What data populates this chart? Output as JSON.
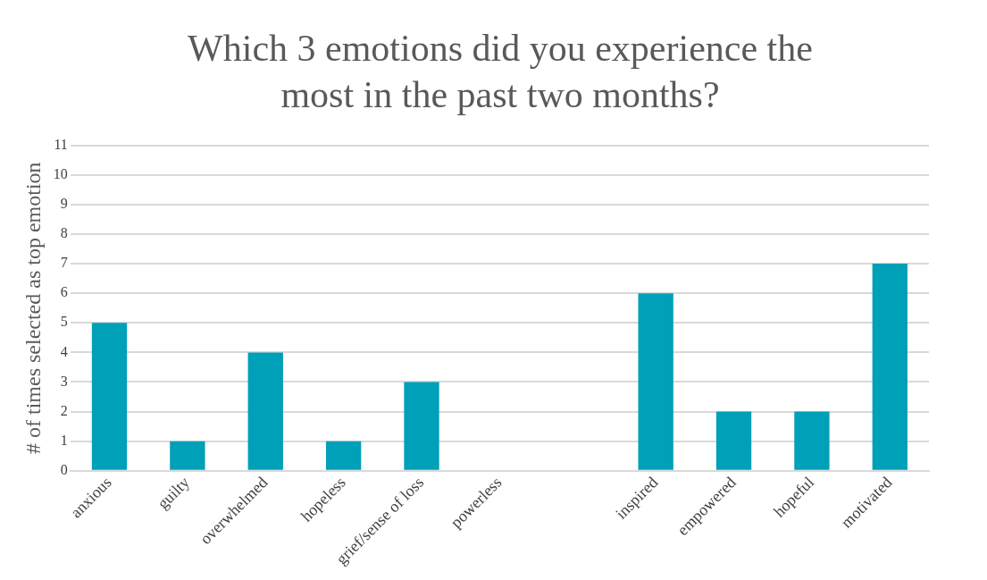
{
  "chart_data": {
    "type": "bar",
    "title": "Which 3 emotions did you experience the most in the past two months?",
    "ylabel": "# of times selected as top emotion",
    "categories": [
      "anxious",
      "guilty",
      "overwhelmed",
      "hopeless",
      "grief/sense of loss",
      "powerless",
      null,
      "inspired",
      "empowered",
      "hopeful",
      "motivated"
    ],
    "values": [
      5,
      1,
      4,
      1,
      3,
      0,
      null,
      6,
      2,
      2,
      7
    ],
    "color": "#00a0b8",
    "ylim": [
      0,
      11
    ],
    "yticks": [
      0,
      1,
      2,
      3,
      4,
      5,
      6,
      7,
      8,
      9,
      10,
      11
    ],
    "grid": "y"
  }
}
